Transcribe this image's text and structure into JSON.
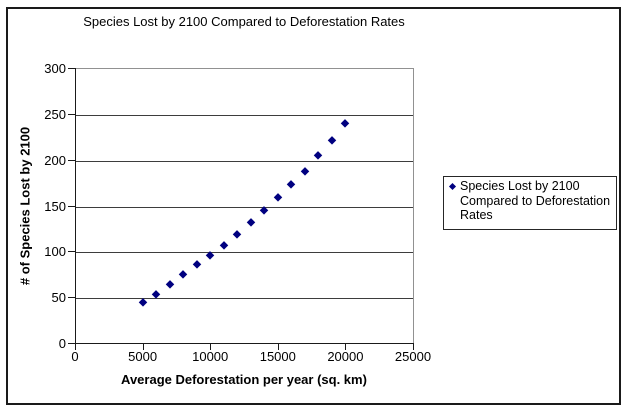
{
  "chart": {
    "title": "Species Lost by 2100 Compared to Deforestation Rates",
    "x_axis_title": "Average Deforestation per year (sq. km)",
    "y_axis_title": "# of Species Lost by 2100"
  },
  "legend": {
    "lines": [
      "Species Lost by 2100",
      "Compared to Deforestation",
      "Rates"
    ],
    "marker_icon": "diamond-icon"
  },
  "colors": {
    "marker": "#000080",
    "gridline": "#3d3d3d",
    "axis": "#1a1a1a",
    "plot_border": "#919191",
    "frame_border": "#1a1a1a",
    "background": "#ffffff"
  },
  "chart_data": {
    "type": "scatter",
    "title": "Species Lost by 2100 Compared to Deforestation Rates",
    "xlabel": "Average Deforestation per year (sq. km)",
    "ylabel": "# of Species Lost by 2100",
    "xlim": [
      0,
      25000
    ],
    "ylim": [
      0,
      300
    ],
    "x_ticks": [
      0,
      5000,
      10000,
      15000,
      20000,
      25000
    ],
    "y_ticks": [
      0,
      50,
      100,
      150,
      200,
      250,
      300
    ],
    "grid": "horizontal-only",
    "legend_position": "right",
    "series": [
      {
        "name": "Species Lost by 2100 Compared to Deforestation Rates",
        "marker": "diamond",
        "color": "#000080",
        "x": [
          5000,
          6000,
          7000,
          8000,
          9000,
          10000,
          11000,
          12000,
          13000,
          14000,
          15000,
          16000,
          17000,
          18000,
          19000,
          20000
        ],
        "y": [
          45,
          54,
          64,
          75,
          86,
          96,
          107,
          119,
          132,
          145,
          159,
          173,
          188,
          205,
          222,
          240
        ]
      }
    ]
  }
}
